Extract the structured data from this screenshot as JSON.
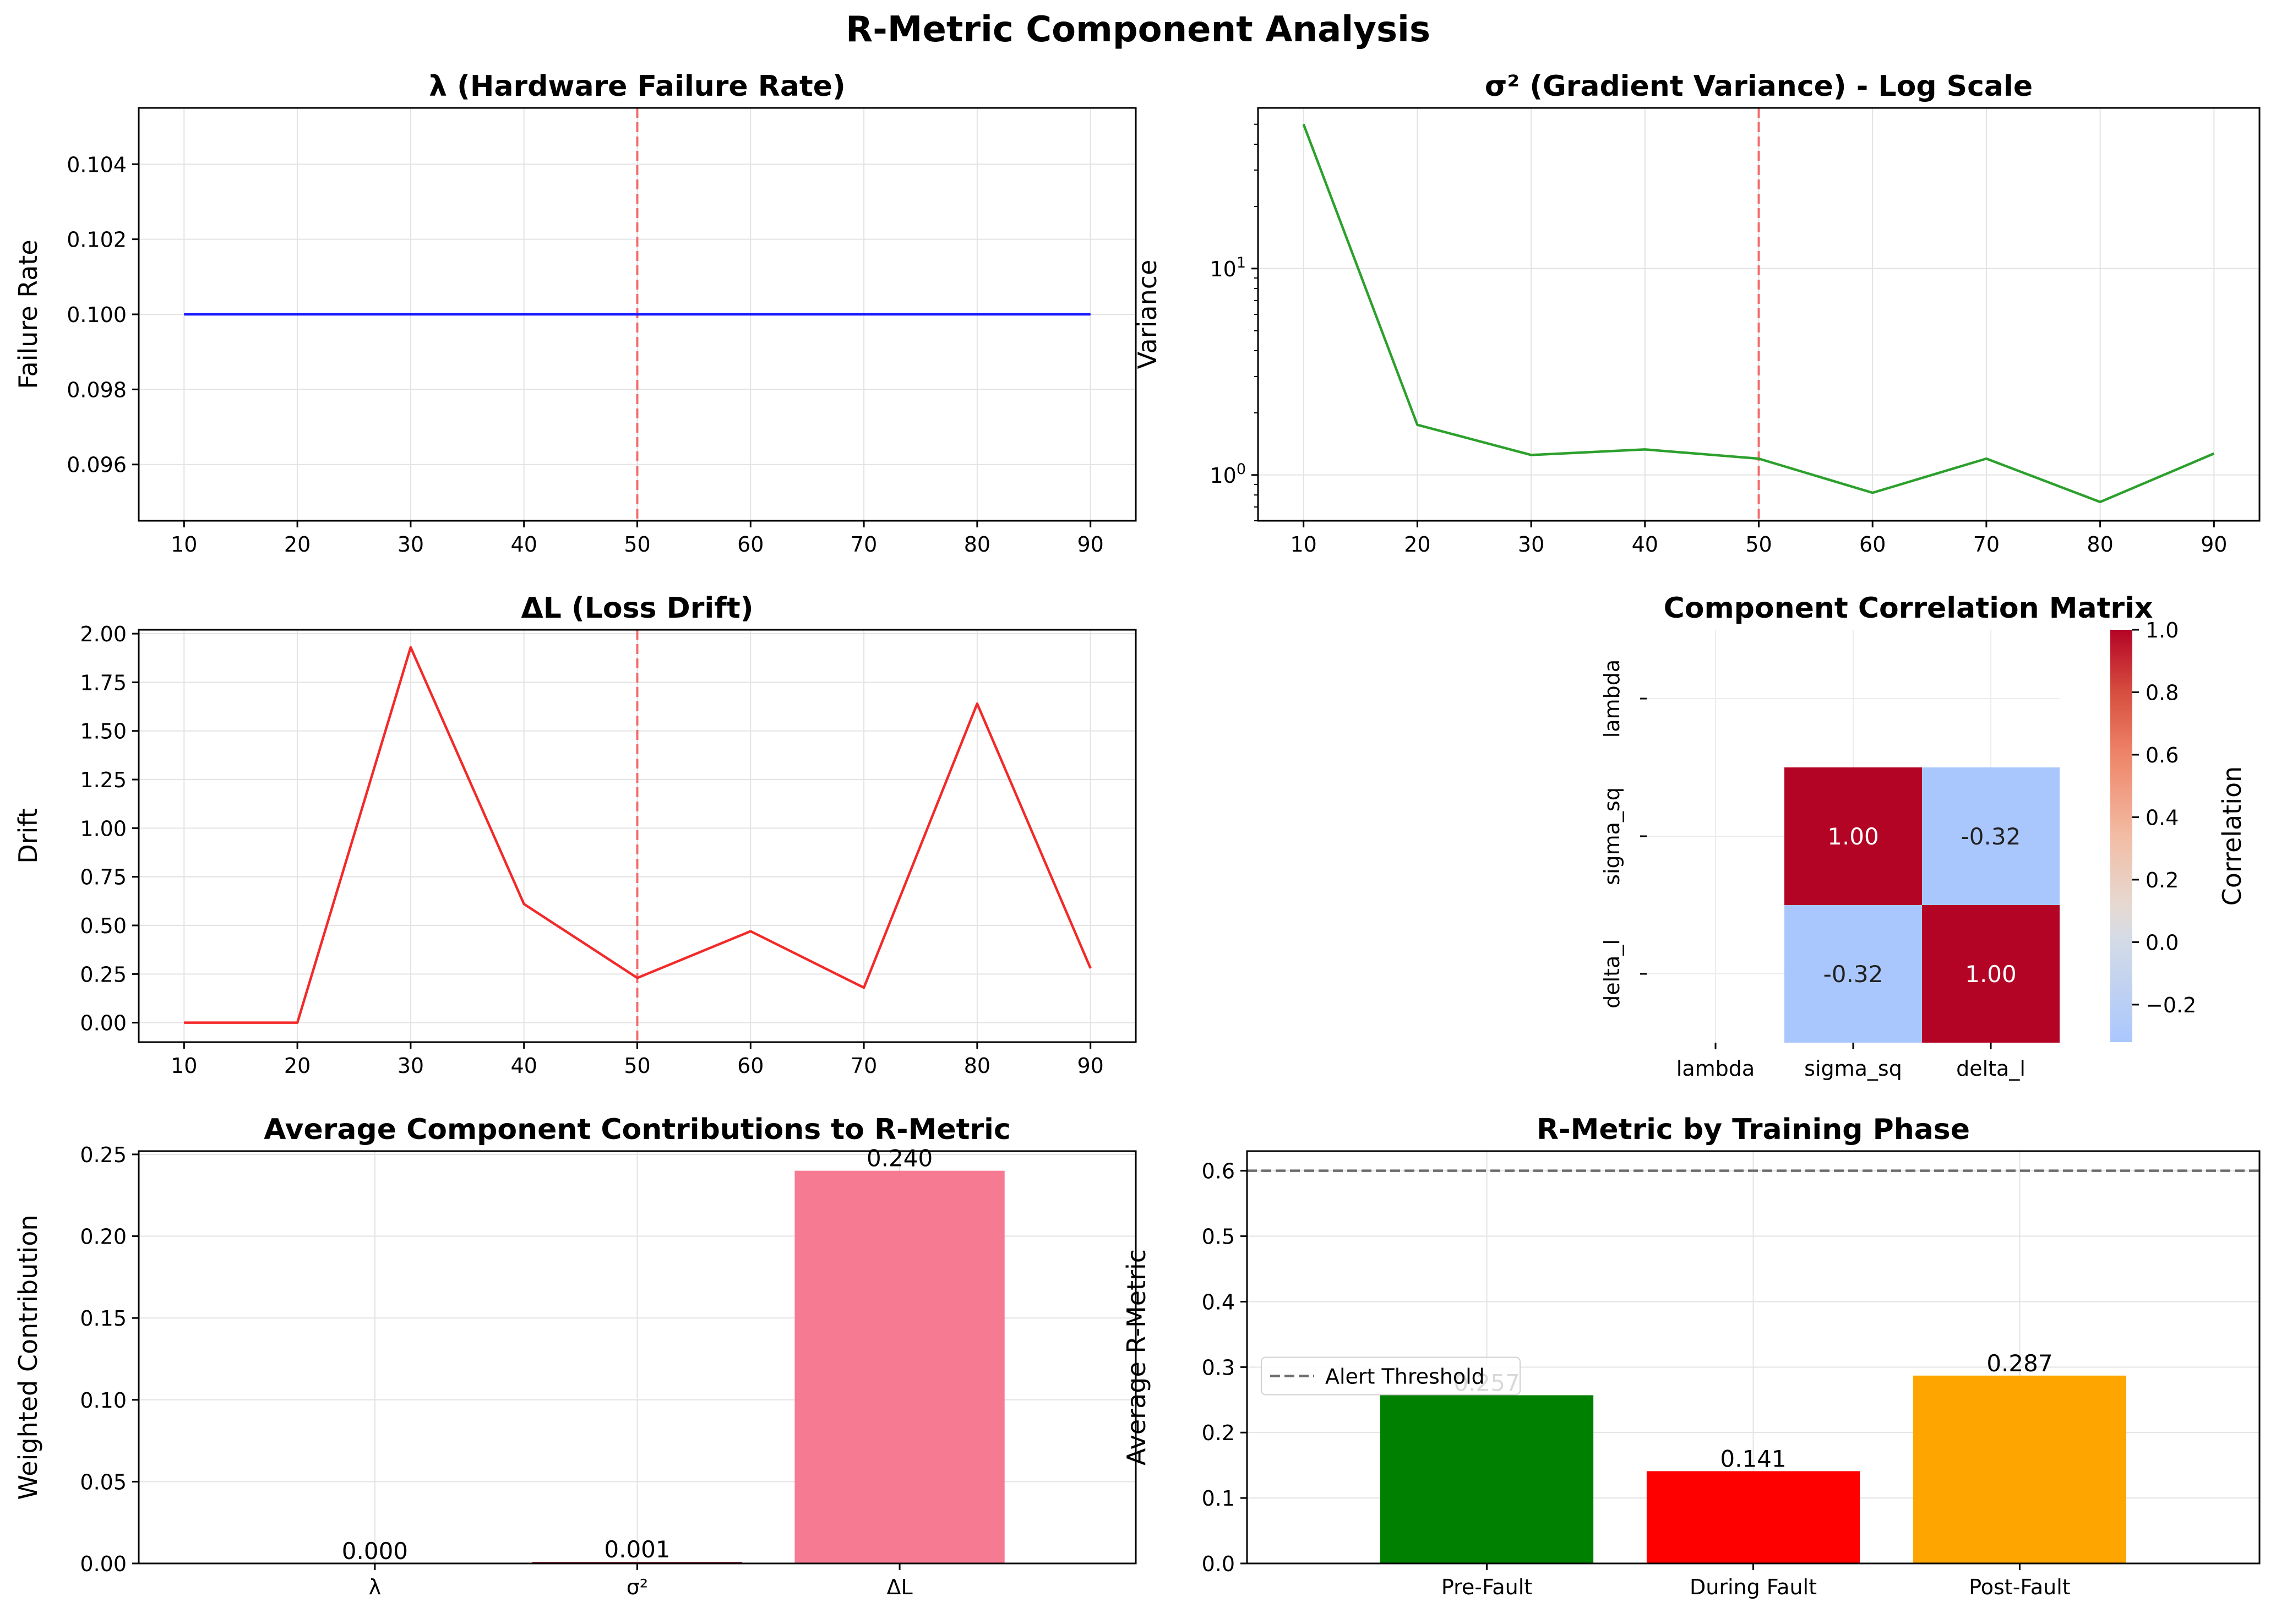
{
  "figure": {
    "suptitle": "R-Metric Component Analysis"
  },
  "chart_data": [
    {
      "id": "lambda",
      "type": "line",
      "title": "λ (Hardware Failure Rate)",
      "xlabel": "",
      "ylabel": "Failure Rate",
      "xlim": [
        6,
        94
      ],
      "ylim": [
        0.0945,
        0.1055
      ],
      "xticks": [
        10,
        20,
        30,
        40,
        50,
        60,
        70,
        80,
        90
      ],
      "yticks": [
        0.096,
        0.098,
        0.1,
        0.102,
        0.104
      ],
      "ytick_labels": [
        "0.096",
        "0.098",
        "0.100",
        "0.102",
        "0.104"
      ],
      "grid": true,
      "vline": {
        "x": 50,
        "color": "#f26b6b",
        "style": "dashed"
      },
      "series": [
        {
          "color": "#1a1aff",
          "x": [
            10,
            20,
            30,
            40,
            50,
            60,
            70,
            80,
            90
          ],
          "y": [
            0.1,
            0.1,
            0.1,
            0.1,
            0.1,
            0.1,
            0.1,
            0.1,
            0.1
          ]
        }
      ]
    },
    {
      "id": "sigma",
      "type": "line",
      "title": "σ² (Gradient Variance) - Log Scale",
      "xlabel": "",
      "ylabel": "Variance",
      "yscale": "log",
      "xlim": [
        6,
        94
      ],
      "ylim": [
        0.6,
        60
      ],
      "xticks": [
        10,
        20,
        30,
        40,
        50,
        60,
        70,
        80,
        90
      ],
      "log_ticks": [
        {
          "value": 1,
          "base": "10",
          "exp": "0"
        },
        {
          "value": 10,
          "base": "10",
          "exp": "1"
        }
      ],
      "grid": true,
      "vline": {
        "x": 50,
        "color": "#f26b6b",
        "style": "dashed"
      },
      "series": [
        {
          "color": "#2ca02c",
          "x": [
            10,
            20,
            30,
            40,
            50,
            60,
            70,
            80,
            90
          ],
          "y": [
            50,
            1.75,
            1.25,
            1.33,
            1.2,
            0.82,
            1.2,
            0.74,
            1.27
          ]
        }
      ]
    },
    {
      "id": "drift",
      "type": "line",
      "title": "ΔL (Loss Drift)",
      "xlabel": "",
      "ylabel": "Drift",
      "xlim": [
        6,
        94
      ],
      "ylim": [
        -0.1,
        2.02
      ],
      "xticks": [
        10,
        20,
        30,
        40,
        50,
        60,
        70,
        80,
        90
      ],
      "yticks": [
        0,
        0.25,
        0.5,
        0.75,
        1.0,
        1.25,
        1.5,
        1.75,
        2.0
      ],
      "ytick_labels": [
        "0.00",
        "0.25",
        "0.50",
        "0.75",
        "1.00",
        "1.25",
        "1.50",
        "1.75",
        "2.00"
      ],
      "grid": true,
      "vline": {
        "x": 50,
        "color": "#f26b6b",
        "style": "dashed"
      },
      "series": [
        {
          "color": "#f22a2a",
          "x": [
            10,
            20,
            30,
            40,
            50,
            60,
            70,
            80,
            90
          ],
          "y": [
            0,
            0,
            1.93,
            0.61,
            0.23,
            0.47,
            0.18,
            1.64,
            0.28
          ]
        }
      ]
    },
    {
      "id": "corr",
      "type": "heatmap",
      "title": "Component Correlation Matrix",
      "rows": [
        "lambda",
        "sigma_sq",
        "delta_l"
      ],
      "cols": [
        "lambda",
        "sigma_sq",
        "delta_l"
      ],
      "values": [
        [
          null,
          null,
          null
        ],
        [
          null,
          1.0,
          -0.32
        ],
        [
          null,
          -0.32,
          1.0
        ]
      ],
      "labels": [
        [
          "",
          "",
          ""
        ],
        [
          "",
          "1.00",
          "-0.32"
        ],
        [
          "",
          "-0.32",
          "1.00"
        ]
      ],
      "colorbar": {
        "label": "Correlation",
        "range": [
          -0.32,
          1.0
        ],
        "ticks": [
          1.0,
          0.8,
          0.6,
          0.4,
          0.2,
          0.0,
          -0.2
        ],
        "tick_labels": [
          "1.0",
          "0.8",
          "0.6",
          "0.4",
          "0.2",
          "0.0",
          "−0.2"
        ]
      }
    },
    {
      "id": "contrib",
      "type": "bar",
      "title": "Average Component Contributions to R-Metric",
      "xlabel": "",
      "ylabel": "Weighted Contribution",
      "categories": [
        "λ",
        "σ²",
        "ΔL"
      ],
      "values": [
        0.0,
        0.001,
        0.24
      ],
      "value_labels": [
        "0.000",
        "0.001",
        "0.240"
      ],
      "colors": [
        "#f4a3b4",
        "#8b1a2b",
        "#f5748c"
      ],
      "ylim": [
        0,
        0.252
      ],
      "yticks": [
        0,
        0.05,
        0.1,
        0.15,
        0.2,
        0.25
      ],
      "ytick_labels": [
        "0.00",
        "0.05",
        "0.10",
        "0.15",
        "0.20",
        "0.25"
      ],
      "grid": true
    },
    {
      "id": "phase",
      "type": "bar",
      "title": "R-Metric by Training Phase",
      "xlabel": "",
      "ylabel": "Average R-Metric",
      "categories": [
        "Pre-Fault",
        "During Fault",
        "Post-Fault"
      ],
      "values": [
        0.257,
        0.141,
        0.287
      ],
      "value_labels": [
        "0.257",
        "0.141",
        "0.287"
      ],
      "colors": [
        "#008000",
        "#ff0000",
        "#ffa500"
      ],
      "ylim": [
        0,
        0.63
      ],
      "yticks": [
        0,
        0.1,
        0.2,
        0.3,
        0.4,
        0.5,
        0.6
      ],
      "ytick_labels": [
        "0.0",
        "0.1",
        "0.2",
        "0.3",
        "0.4",
        "0.5",
        "0.6"
      ],
      "grid": true,
      "hline": {
        "y": 0.6,
        "label": "Alert Threshold",
        "color": "#6e6e6e",
        "style": "dashed"
      },
      "legend": "upper-left"
    }
  ]
}
